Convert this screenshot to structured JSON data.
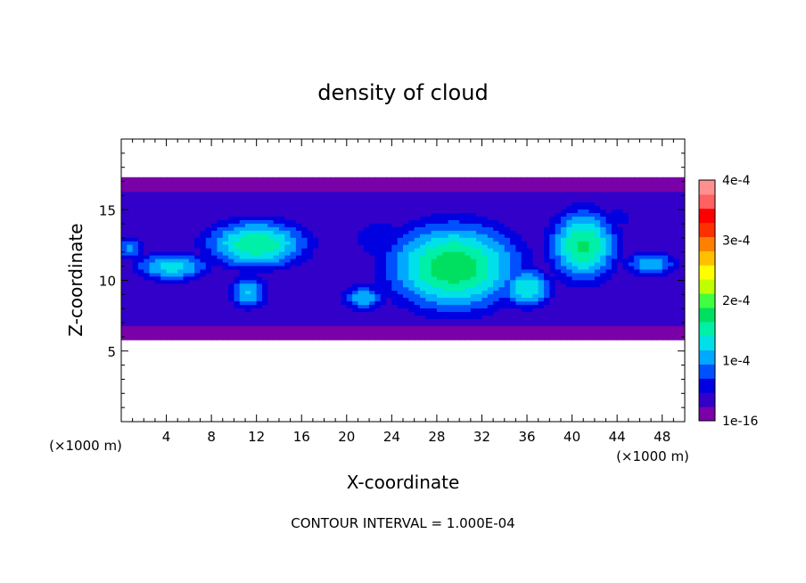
{
  "chart_data": {
    "type": "heatmap",
    "title": "density of cloud",
    "xlabel": "X-coordinate",
    "ylabel": "Z-coordinate",
    "x_unit": "(×1000 m)",
    "z_unit": "(×1000 m)",
    "xlim": [
      0,
      50
    ],
    "ylim": [
      0,
      20
    ],
    "x_ticks": [
      4,
      8,
      12,
      16,
      20,
      24,
      28,
      32,
      36,
      40,
      44,
      48
    ],
    "y_ticks": [
      5,
      10,
      15
    ],
    "colorbar": {
      "min": 1e-16,
      "max": 0.0004,
      "tick_labels": [
        "1e-16",
        "1e-4",
        "2e-4",
        "3e-4",
        "4e-4"
      ],
      "tick_values": [
        0,
        0.0001,
        0.0002,
        0.0003,
        0.0004
      ],
      "colors": [
        "#7a00a8",
        "#3200c8",
        "#0000e0",
        "#0050ff",
        "#00a8ff",
        "#00e0e8",
        "#00f0a8",
        "#00e060",
        "#40ff40",
        "#c0ff00",
        "#ffff00",
        "#ffc000",
        "#ff8000",
        "#ff3000",
        "#ff0000",
        "#ff6060",
        "#ff9090"
      ]
    },
    "footer": "CONTOUR INTERVAL = 1.000E-04",
    "cloud_field": {
      "layer_bottom_z": 5.8,
      "layer_top_z": 17.3,
      "background_value": 3e-05,
      "blobs": [
        {
          "x": 29.5,
          "z": 11.0,
          "rx": 6.5,
          "rz": 3.4,
          "value": 0.000185
        },
        {
          "x": 41.0,
          "z": 12.5,
          "rx": 3.3,
          "rz": 2.8,
          "value": 0.00017
        },
        {
          "x": 36.0,
          "z": 9.5,
          "rx": 2.6,
          "rz": 1.6,
          "value": 0.00014
        },
        {
          "x": 12.0,
          "z": 12.6,
          "rx": 5.0,
          "rz": 1.9,
          "value": 0.000165
        },
        {
          "x": 4.5,
          "z": 11.0,
          "rx": 3.8,
          "rz": 1.2,
          "value": 0.00013
        },
        {
          "x": 11.3,
          "z": 9.2,
          "rx": 2.0,
          "rz": 1.4,
          "value": 0.00012
        },
        {
          "x": 47.0,
          "z": 11.2,
          "rx": 2.8,
          "rz": 1.1,
          "value": 0.00011
        },
        {
          "x": 21.5,
          "z": 8.8,
          "rx": 2.2,
          "rz": 1.1,
          "value": 0.00011
        },
        {
          "x": 0.8,
          "z": 12.3,
          "rx": 1.5,
          "rz": 1.0,
          "value": 0.0001
        },
        {
          "x": 23.0,
          "z": 13.0,
          "rx": 4.0,
          "rz": 2.5,
          "value": 6e-05
        },
        {
          "x": 44.0,
          "z": 14.5,
          "rx": 5.0,
          "rz": 2.0,
          "value": 5e-05
        }
      ]
    }
  }
}
